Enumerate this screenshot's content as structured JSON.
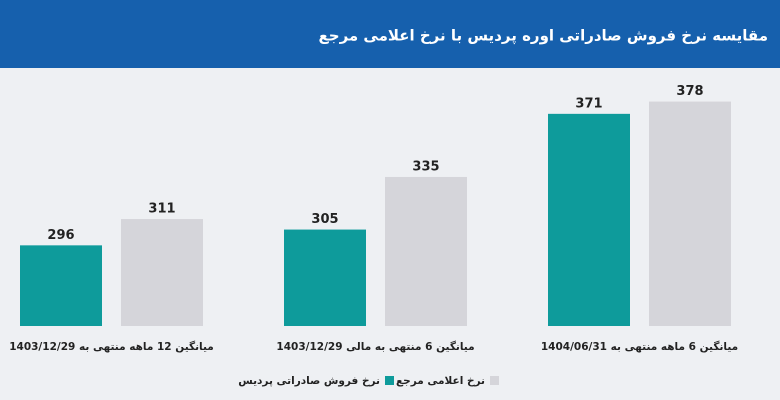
{
  "chart_data": {
    "type": "bar",
    "title": "مقایسه نرخ فروش صادراتی اوره پردیس با نرخ اعلامی مرجع",
    "categories": [
      "میانگین 12 ماهه منتهی به 1403/12/29",
      "میانگین 6 منتهی به مالی 1403/12/29",
      "میانگین 6 ماهه منتهی به 1404/06/31"
    ],
    "series": [
      {
        "name": "نرخ فروش صادراتی پردیس",
        "color": "#0e9b9b",
        "values": [
          296,
          305,
          371
        ]
      },
      {
        "name": "نرخ اعلامی مرجع",
        "color": "#d5d5da",
        "values": [
          311,
          335,
          378
        ]
      }
    ],
    "ylim": [
      250,
      400
    ]
  }
}
